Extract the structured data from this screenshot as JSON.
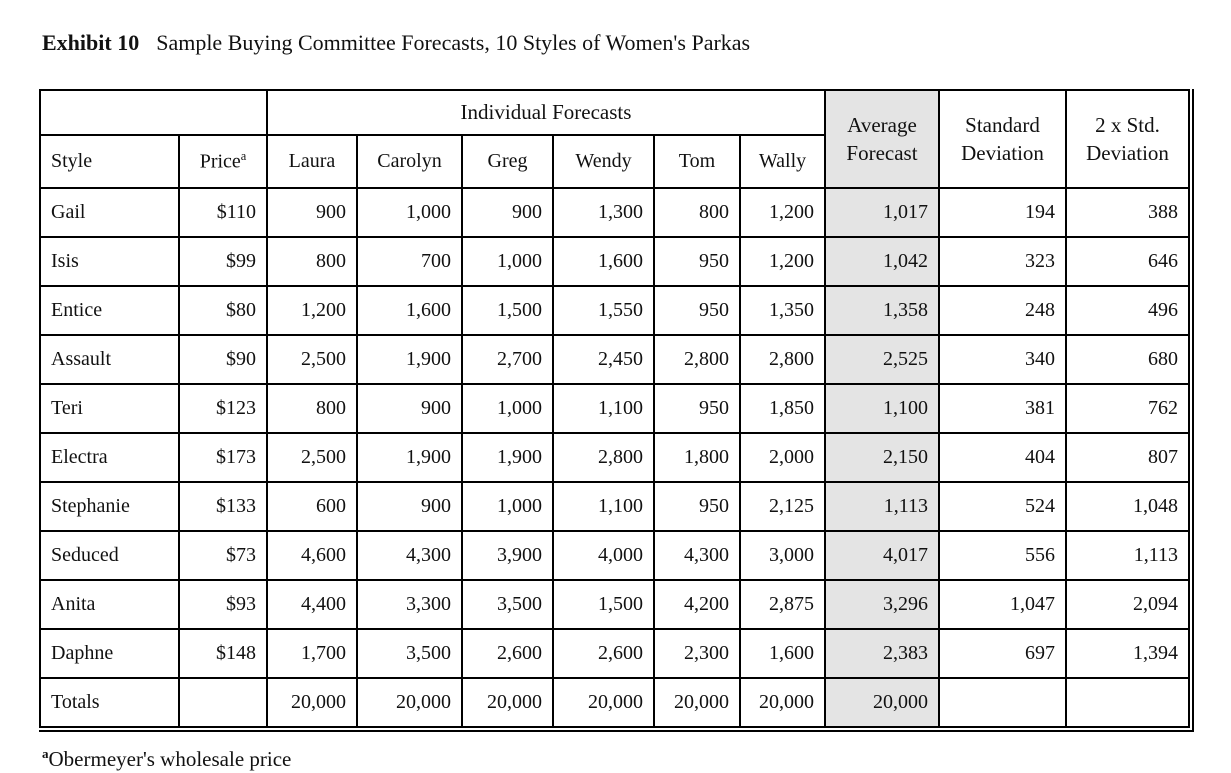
{
  "title": {
    "label": "Exhibit 10",
    "text": "Sample Buying Committee Forecasts, 10 Styles of Women's Parkas"
  },
  "table": {
    "group_header": "Individual Forecasts",
    "columns": {
      "style": "Style",
      "price": "Price",
      "price_superscript": "a",
      "forecasters": [
        "Laura",
        "Carolyn",
        "Greg",
        "Wendy",
        "Tom",
        "Wally"
      ],
      "average": "Average Forecast",
      "std_dev": "Standard Deviation",
      "two_std_dev": "2 x Std. Deviation"
    },
    "rows": [
      {
        "style": "Gail",
        "price": "$110",
        "values": [
          "900",
          "1,000",
          "900",
          "1,300",
          "800",
          "1,200"
        ],
        "average": "1,017",
        "std_dev": "194",
        "two_std_dev": "388"
      },
      {
        "style": "Isis",
        "price": "$99",
        "values": [
          "800",
          "700",
          "1,000",
          "1,600",
          "950",
          "1,200"
        ],
        "average": "1,042",
        "std_dev": "323",
        "two_std_dev": "646"
      },
      {
        "style": "Entice",
        "price": "$80",
        "values": [
          "1,200",
          "1,600",
          "1,500",
          "1,550",
          "950",
          "1,350"
        ],
        "average": "1,358",
        "std_dev": "248",
        "two_std_dev": "496"
      },
      {
        "style": "Assault",
        "price": "$90",
        "values": [
          "2,500",
          "1,900",
          "2,700",
          "2,450",
          "2,800",
          "2,800"
        ],
        "average": "2,525",
        "std_dev": "340",
        "two_std_dev": "680"
      },
      {
        "style": "Teri",
        "price": "$123",
        "values": [
          "800",
          "900",
          "1,000",
          "1,100",
          "950",
          "1,850"
        ],
        "average": "1,100",
        "std_dev": "381",
        "two_std_dev": "762"
      },
      {
        "style": "Electra",
        "price": "$173",
        "values": [
          "2,500",
          "1,900",
          "1,900",
          "2,800",
          "1,800",
          "2,000"
        ],
        "average": "2,150",
        "std_dev": "404",
        "two_std_dev": "807"
      },
      {
        "style": "Stephanie",
        "price": "$133",
        "values": [
          "600",
          "900",
          "1,000",
          "1,100",
          "950",
          "2,125"
        ],
        "average": "1,113",
        "std_dev": "524",
        "two_std_dev": "1,048"
      },
      {
        "style": "Seduced",
        "price": "$73",
        "values": [
          "4,600",
          "4,300",
          "3,900",
          "4,000",
          "4,300",
          "3,000"
        ],
        "average": "4,017",
        "std_dev": "556",
        "two_std_dev": "1,113"
      },
      {
        "style": "Anita",
        "price": "$93",
        "values": [
          "4,400",
          "3,300",
          "3,500",
          "1,500",
          "4,200",
          "2,875"
        ],
        "average": "3,296",
        "std_dev": "1,047",
        "two_std_dev": "2,094"
      },
      {
        "style": "Daphne",
        "price": "$148",
        "values": [
          "1,700",
          "3,500",
          "2,600",
          "2,600",
          "2,300",
          "1,600"
        ],
        "average": "2,383",
        "std_dev": "697",
        "two_std_dev": "1,394"
      },
      {
        "style": "Totals",
        "price": "",
        "values": [
          "20,000",
          "20,000",
          "20,000",
          "20,000",
          "20,000",
          "20,000"
        ],
        "average": "20,000",
        "std_dev": "",
        "two_std_dev": ""
      }
    ]
  },
  "footnote": {
    "superscript": "a",
    "text": "Obermeyer's wholesale price"
  },
  "colors": {
    "shaded_column": "#e4e4e4",
    "border": "#000000",
    "background": "#ffffff",
    "text": "#111111"
  }
}
